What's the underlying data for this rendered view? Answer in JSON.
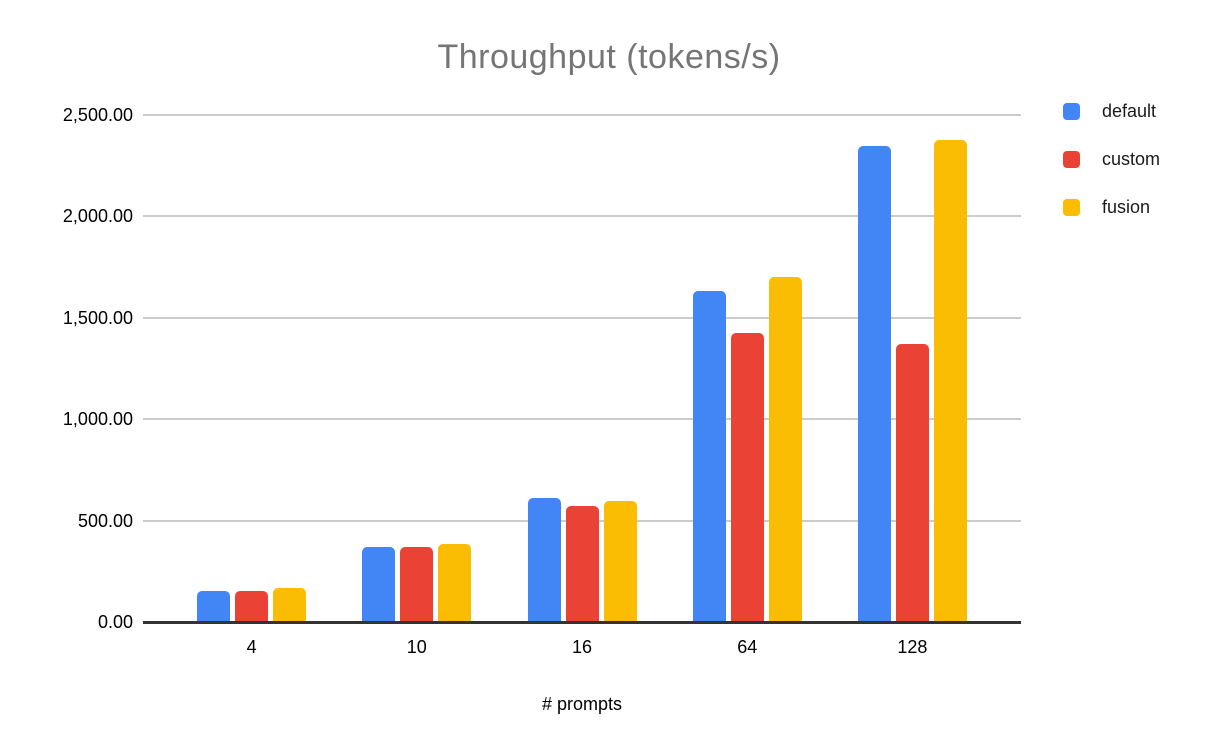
{
  "chart_data": {
    "type": "bar",
    "title": "Throughput (tokens/s)",
    "xlabel": "# prompts",
    "ylabel": "",
    "categories": [
      "4",
      "10",
      "16",
      "64",
      "128"
    ],
    "series": [
      {
        "name": "default",
        "color": "#4285F4",
        "values": [
          155,
          372,
          610,
          1630,
          2345
        ]
      },
      {
        "name": "custom",
        "color": "#EA4335",
        "values": [
          154,
          368,
          571,
          1425,
          1372
        ]
      },
      {
        "name": "fusion",
        "color": "#FBBC04",
        "values": [
          166,
          385,
          598,
          1700,
          2378
        ]
      }
    ],
    "ylim": [
      0,
      2500
    ],
    "yticks": [
      {
        "value": 0,
        "label": "0.00"
      },
      {
        "value": 500,
        "label": "500.00"
      },
      {
        "value": 1000,
        "label": "1,000.00"
      },
      {
        "value": 1500,
        "label": "1,500.00"
      },
      {
        "value": 2000,
        "label": "2,000.00"
      },
      {
        "value": 2500,
        "label": "2,500.00"
      }
    ],
    "grid": true,
    "legend_position": "top-right",
    "colors": {
      "title_text": "#757575",
      "gridline": "#cccccc",
      "axis_baseline": "#333333",
      "tick_text": "#000000"
    }
  }
}
